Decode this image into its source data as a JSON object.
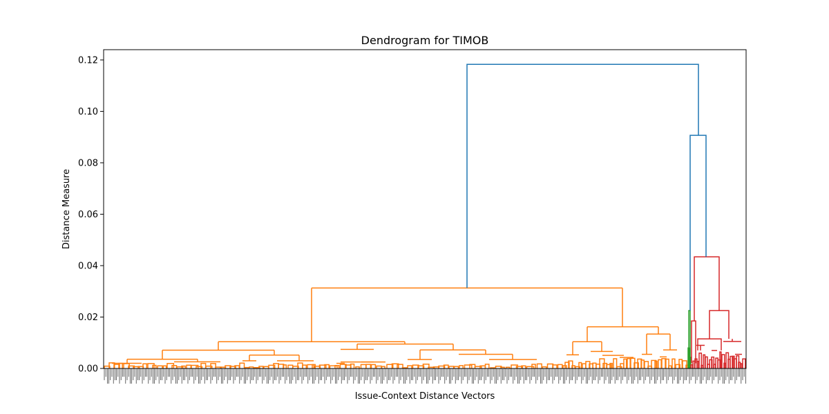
{
  "chart_data": {
    "type": "dendrogram",
    "title": "Dendrogram for TIMOB",
    "xlabel": "Issue-Context Distance Vectors",
    "ylabel": "Distance Measure",
    "ylim": [
      0,
      0.124
    ],
    "yticks": [
      "0.00",
      "0.02",
      "0.04",
      "0.06",
      "0.08",
      "0.10",
      "0.12"
    ],
    "grid": false,
    "leaf_labels": "dense, unreadable",
    "colors": {
      "root": "#1f77b4",
      "cluster_1": "#ff7f0e",
      "cluster_2": "#2ca02c",
      "cluster_3": "#d62728"
    },
    "merges": [
      {
        "cluster": "root",
        "height": 0.1183
      },
      {
        "cluster": "root",
        "height": 0.0907
      },
      {
        "cluster": "cluster_3",
        "height": 0.0434
      },
      {
        "cluster": "cluster_1",
        "height": 0.0313
      },
      {
        "cluster": "cluster_2",
        "height": 0.0225
      },
      {
        "cluster": "cluster_3",
        "height": 0.0225
      },
      {
        "cluster": "cluster_1",
        "height": 0.0162
      },
      {
        "cluster": "cluster_3",
        "height": 0.0185
      },
      {
        "cluster": "cluster_1",
        "height": 0.0134
      },
      {
        "cluster": "cluster_3",
        "height": 0.0115
      },
      {
        "cluster": "cluster_1",
        "height": 0.0104
      },
      {
        "cluster": "cluster_3",
        "height": 0.0105
      },
      {
        "cluster": "cluster_1",
        "height": 0.0095
      },
      {
        "cluster": "cluster_1",
        "height": 0.0074
      },
      {
        "cluster": "cluster_1",
        "height": 0.0072
      },
      {
        "cluster": "cluster_1",
        "height": 0.0071
      },
      {
        "cluster": "cluster_1",
        "height": 0.0066
      },
      {
        "cluster": "cluster_1",
        "height": 0.0055
      },
      {
        "cluster": "cluster_1",
        "height": 0.0053
      },
      {
        "cluster": "cluster_1",
        "height": 0.0052
      },
      {
        "cluster": "cluster_1",
        "height": 0.0051
      },
      {
        "cluster": "cluster_1",
        "height": 0.0045
      },
      {
        "cluster": "cluster_1",
        "height": 0.0043
      },
      {
        "cluster": "cluster_1",
        "height": 0.0036
      },
      {
        "cluster": "cluster_1",
        "height": 0.0035
      },
      {
        "cluster": "cluster_1",
        "height": 0.003
      },
      {
        "cluster": "cluster_1",
        "height": 0.0026
      },
      {
        "cluster": "cluster_1",
        "height": 0.0025
      },
      {
        "cluster": "cluster_1",
        "height": 0.002
      },
      {
        "cluster": "cluster_1",
        "height": 0.0015
      }
    ]
  }
}
